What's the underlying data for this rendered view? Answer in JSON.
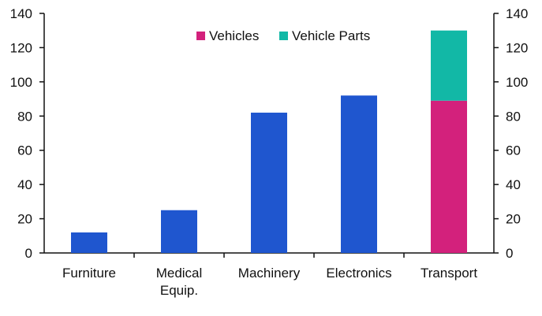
{
  "chart_data": {
    "type": "bar",
    "title": "",
    "xlabel": "",
    "ylabel": "",
    "ylim": [
      0,
      140
    ],
    "yticks": [
      0,
      20,
      40,
      60,
      80,
      100,
      120,
      140
    ],
    "categories": [
      [
        "Furniture"
      ],
      [
        "Medical",
        "Equip."
      ],
      [
        "Machinery"
      ],
      [
        "Electronics"
      ],
      [
        "Transport"
      ]
    ],
    "bars": [
      {
        "category": "Furniture",
        "value": 12,
        "color": "#1f56cf"
      },
      {
        "category": "Medical Equip.",
        "value": 25,
        "color": "#1f56cf"
      },
      {
        "category": "Machinery",
        "value": 82,
        "color": "#1f56cf"
      },
      {
        "category": "Electronics",
        "value": 92,
        "color": "#1f56cf"
      },
      {
        "category": "Transport",
        "segments": [
          {
            "series": "Vehicles",
            "value": 89,
            "color": "#d3217c"
          },
          {
            "series": "Vehicle Parts",
            "value": 41,
            "color": "#12b8a6"
          }
        ]
      }
    ],
    "legend": {
      "position": "top-right",
      "items": [
        {
          "label": "Vehicles",
          "color": "#d3217c"
        },
        {
          "label": "Vehicle Parts",
          "color": "#12b8a6"
        }
      ]
    },
    "grid": false,
    "axes": "left-and-right"
  }
}
